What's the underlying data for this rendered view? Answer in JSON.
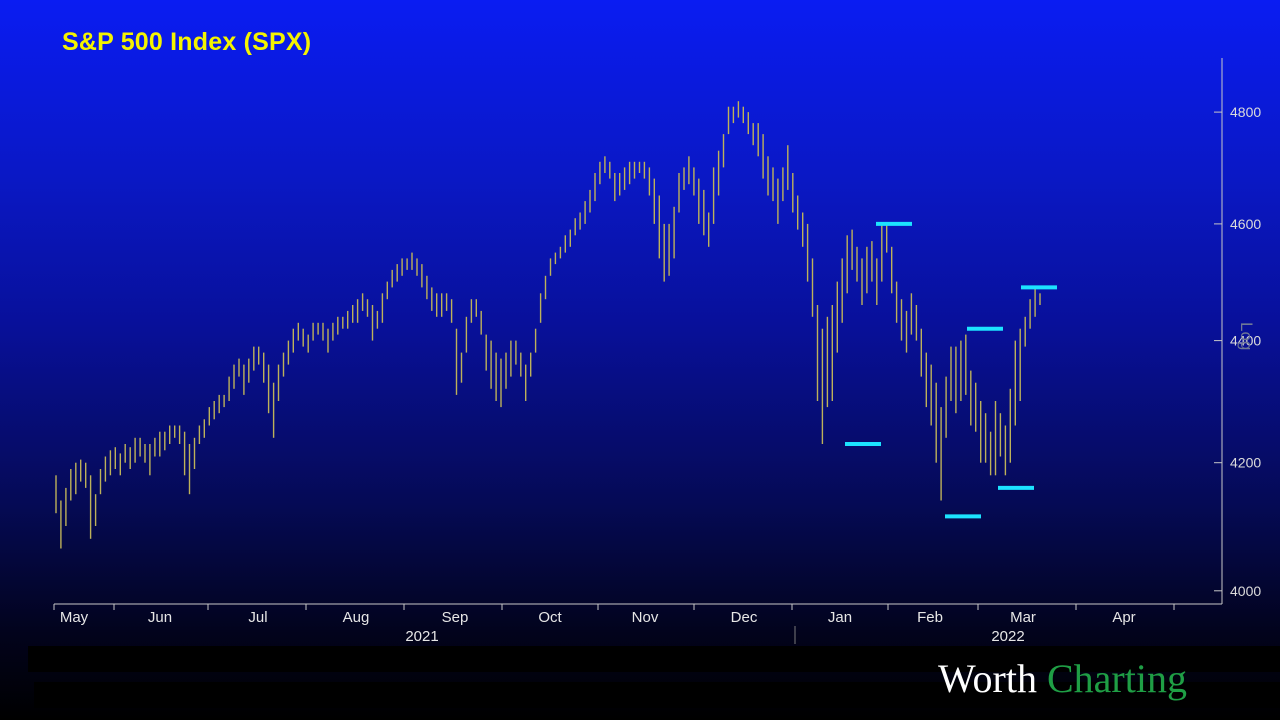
{
  "chart_data": {
    "type": "ohlc",
    "title": "S&P 500 Index (SPX)",
    "scale": "log",
    "scale_label": "Log",
    "ylim": [
      3980,
      4900
    ],
    "y_ticks": [
      4000,
      4200,
      4400,
      4600,
      4800
    ],
    "x_months": [
      "May",
      "Jun",
      "Jul",
      "Aug",
      "Sep",
      "Oct",
      "Nov",
      "Dec",
      "Jan",
      "Feb",
      "Mar",
      "Apr"
    ],
    "x_years": [
      "2021",
      "2022"
    ],
    "series": [
      {
        "color": "#bdb15a",
        "daily_ranges": [
          [
            4120,
            4180
          ],
          [
            4065,
            4140
          ],
          [
            4100,
            4160
          ],
          [
            4140,
            4190
          ],
          [
            4150,
            4200
          ],
          [
            4170,
            4205
          ],
          [
            4160,
            4200
          ],
          [
            4080,
            4180
          ],
          [
            4100,
            4150
          ],
          [
            4150,
            4190
          ],
          [
            4170,
            4210
          ],
          [
            4180,
            4220
          ],
          [
            4190,
            4225
          ],
          [
            4180,
            4215
          ],
          [
            4200,
            4230
          ],
          [
            4190,
            4225
          ],
          [
            4200,
            4240
          ],
          [
            4210,
            4240
          ],
          [
            4200,
            4230
          ],
          [
            4180,
            4230
          ],
          [
            4210,
            4240
          ],
          [
            4210,
            4250
          ],
          [
            4220,
            4250
          ],
          [
            4230,
            4260
          ],
          [
            4240,
            4260
          ],
          [
            4230,
            4260
          ],
          [
            4180,
            4250
          ],
          [
            4150,
            4230
          ],
          [
            4190,
            4240
          ],
          [
            4230,
            4260
          ],
          [
            4240,
            4270
          ],
          [
            4260,
            4290
          ],
          [
            4270,
            4300
          ],
          [
            4280,
            4310
          ],
          [
            4290,
            4310
          ],
          [
            4300,
            4340
          ],
          [
            4320,
            4360
          ],
          [
            4340,
            4370
          ],
          [
            4310,
            4360
          ],
          [
            4330,
            4370
          ],
          [
            4350,
            4390
          ],
          [
            4360,
            4390
          ],
          [
            4330,
            4380
          ],
          [
            4280,
            4360
          ],
          [
            4240,
            4330
          ],
          [
            4300,
            4360
          ],
          [
            4340,
            4380
          ],
          [
            4360,
            4400
          ],
          [
            4380,
            4420
          ],
          [
            4400,
            4430
          ],
          [
            4390,
            4420
          ],
          [
            4380,
            4410
          ],
          [
            4400,
            4430
          ],
          [
            4410,
            4430
          ],
          [
            4400,
            4430
          ],
          [
            4380,
            4420
          ],
          [
            4400,
            4430
          ],
          [
            4410,
            4440
          ],
          [
            4420,
            4440
          ],
          [
            4420,
            4450
          ],
          [
            4430,
            4460
          ],
          [
            4430,
            4470
          ],
          [
            4450,
            4480
          ],
          [
            4440,
            4470
          ],
          [
            4400,
            4460
          ],
          [
            4420,
            4450
          ],
          [
            4430,
            4480
          ],
          [
            4470,
            4500
          ],
          [
            4490,
            4520
          ],
          [
            4500,
            4530
          ],
          [
            4510,
            4540
          ],
          [
            4520,
            4540
          ],
          [
            4520,
            4550
          ],
          [
            4510,
            4540
          ],
          [
            4490,
            4530
          ],
          [
            4470,
            4510
          ],
          [
            4450,
            4490
          ],
          [
            4440,
            4480
          ],
          [
            4440,
            4480
          ],
          [
            4450,
            4480
          ],
          [
            4430,
            4470
          ],
          [
            4310,
            4420
          ],
          [
            4330,
            4380
          ],
          [
            4380,
            4440
          ],
          [
            4430,
            4470
          ],
          [
            4440,
            4470
          ],
          [
            4410,
            4450
          ],
          [
            4350,
            4410
          ],
          [
            4320,
            4400
          ],
          [
            4300,
            4380
          ],
          [
            4290,
            4370
          ],
          [
            4320,
            4380
          ],
          [
            4340,
            4400
          ],
          [
            4360,
            4400
          ],
          [
            4340,
            4380
          ],
          [
            4300,
            4360
          ],
          [
            4340,
            4380
          ],
          [
            4380,
            4420
          ],
          [
            4430,
            4480
          ],
          [
            4470,
            4510
          ],
          [
            4510,
            4540
          ],
          [
            4530,
            4550
          ],
          [
            4540,
            4560
          ],
          [
            4550,
            4580
          ],
          [
            4560,
            4590
          ],
          [
            4580,
            4610
          ],
          [
            4590,
            4620
          ],
          [
            4600,
            4640
          ],
          [
            4620,
            4660
          ],
          [
            4640,
            4690
          ],
          [
            4670,
            4710
          ],
          [
            4690,
            4720
          ],
          [
            4680,
            4710
          ],
          [
            4640,
            4690
          ],
          [
            4650,
            4690
          ],
          [
            4660,
            4700
          ],
          [
            4670,
            4710
          ],
          [
            4680,
            4710
          ],
          [
            4690,
            4710
          ],
          [
            4680,
            4710
          ],
          [
            4650,
            4700
          ],
          [
            4600,
            4680
          ],
          [
            4540,
            4650
          ],
          [
            4500,
            4600
          ],
          [
            4510,
            4600
          ],
          [
            4540,
            4630
          ],
          [
            4620,
            4690
          ],
          [
            4660,
            4700
          ],
          [
            4670,
            4720
          ],
          [
            4650,
            4700
          ],
          [
            4600,
            4680
          ],
          [
            4580,
            4660
          ],
          [
            4560,
            4620
          ],
          [
            4600,
            4700
          ],
          [
            4650,
            4730
          ],
          [
            4700,
            4760
          ],
          [
            4760,
            4810
          ],
          [
            4780,
            4810
          ],
          [
            4790,
            4820
          ],
          [
            4780,
            4810
          ],
          [
            4760,
            4800
          ],
          [
            4740,
            4780
          ],
          [
            4720,
            4780
          ],
          [
            4680,
            4760
          ],
          [
            4650,
            4720
          ],
          [
            4640,
            4700
          ],
          [
            4600,
            4680
          ],
          [
            4640,
            4700
          ],
          [
            4660,
            4740
          ],
          [
            4620,
            4690
          ],
          [
            4590,
            4650
          ],
          [
            4560,
            4620
          ],
          [
            4500,
            4600
          ],
          [
            4440,
            4540
          ],
          [
            4300,
            4460
          ],
          [
            4230,
            4420
          ],
          [
            4290,
            4440
          ],
          [
            4300,
            4460
          ],
          [
            4380,
            4500
          ],
          [
            4430,
            4540
          ],
          [
            4480,
            4580
          ],
          [
            4520,
            4590
          ],
          [
            4500,
            4560
          ],
          [
            4460,
            4540
          ],
          [
            4480,
            4560
          ],
          [
            4500,
            4570
          ],
          [
            4460,
            4540
          ],
          [
            4500,
            4600
          ],
          [
            4550,
            4600
          ],
          [
            4480,
            4560
          ],
          [
            4430,
            4500
          ],
          [
            4400,
            4470
          ],
          [
            4380,
            4450
          ],
          [
            4410,
            4480
          ],
          [
            4400,
            4460
          ],
          [
            4340,
            4420
          ],
          [
            4290,
            4380
          ],
          [
            4260,
            4360
          ],
          [
            4200,
            4330
          ],
          [
            4140,
            4290
          ],
          [
            4240,
            4340
          ],
          [
            4300,
            4390
          ],
          [
            4280,
            4390
          ],
          [
            4300,
            4400
          ],
          [
            4310,
            4410
          ],
          [
            4260,
            4350
          ],
          [
            4250,
            4330
          ],
          [
            4200,
            4300
          ],
          [
            4200,
            4280
          ],
          [
            4180,
            4250
          ],
          [
            4180,
            4300
          ],
          [
            4210,
            4280
          ],
          [
            4180,
            4260
          ],
          [
            4200,
            4320
          ],
          [
            4260,
            4400
          ],
          [
            4300,
            4420
          ],
          [
            4390,
            4440
          ],
          [
            4420,
            4470
          ],
          [
            4440,
            4490
          ],
          [
            4460,
            4480
          ]
        ]
      }
    ],
    "annotations": [
      {
        "type": "level",
        "value": 4230,
        "label": ""
      },
      {
        "type": "level",
        "value": 4600,
        "label": ""
      },
      {
        "type": "level",
        "value": 4115,
        "label": ""
      },
      {
        "type": "level",
        "value": 4420,
        "label": ""
      },
      {
        "type": "level",
        "value": 4160,
        "label": ""
      },
      {
        "type": "level",
        "value": 4490,
        "label": ""
      }
    ],
    "annotation_color": "#1ce3ff"
  },
  "logo": {
    "part1": "Worth",
    "part2": "Charting"
  }
}
